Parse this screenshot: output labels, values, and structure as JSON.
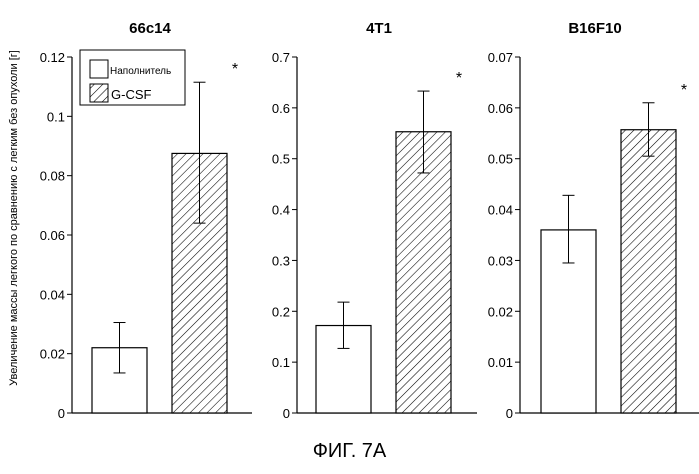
{
  "figure_label": "ФИГ. 7А",
  "legend": {
    "vehicle": "Наполнитель",
    "gcsf": "G-CSF"
  },
  "chart_data": {
    "type": "bar",
    "ylabel": "Увеличение массы легкого по сравнению с легким без опухоли [г]",
    "colors": {
      "vehicle_fill": "#ffffff",
      "gcsf_hatch": "#000000",
      "edge": "#000000"
    },
    "panels": [
      {
        "title": "66c14",
        "ylim": [
          0,
          0.12
        ],
        "ticks": [
          0,
          0.02,
          0.04,
          0.06,
          0.08,
          0.1,
          0.12
        ],
        "tick_labels": [
          "0",
          "0.02",
          "0.04",
          "0.06",
          "0.08",
          "0.1",
          "0.12"
        ],
        "series": [
          {
            "name": "Наполнитель",
            "value": 0.022,
            "err_low": 0.0135,
            "err_high": 0.0305
          },
          {
            "name": "G-CSF",
            "value": 0.0875,
            "err_low": 0.064,
            "err_high": 0.1115,
            "annotation": "*"
          }
        ]
      },
      {
        "title": "4T1",
        "ylim": [
          0,
          0.7
        ],
        "ticks": [
          0,
          0.1,
          0.2,
          0.3,
          0.4,
          0.5,
          0.6,
          0.7
        ],
        "tick_labels": [
          "0",
          "0.1",
          "0.2",
          "0.3",
          "0.4",
          "0.5",
          "0.6",
          "0.7"
        ],
        "series": [
          {
            "name": "Наполнитель",
            "value": 0.172,
            "err_low": 0.127,
            "err_high": 0.218
          },
          {
            "name": "G-CSF",
            "value": 0.553,
            "err_low": 0.472,
            "err_high": 0.633,
            "annotation": "*"
          }
        ]
      },
      {
        "title": "B16F10",
        "ylim": [
          0,
          0.07
        ],
        "ticks": [
          0,
          0.01,
          0.02,
          0.03,
          0.04,
          0.05,
          0.06,
          0.07
        ],
        "tick_labels": [
          "0",
          "0.01",
          "0.02",
          "0.03",
          "0.04",
          "0.05",
          "0.06",
          "0.07"
        ],
        "series": [
          {
            "name": "Наполнитель",
            "value": 0.036,
            "err_low": 0.0295,
            "err_high": 0.0428
          },
          {
            "name": "G-CSF",
            "value": 0.0557,
            "err_low": 0.0505,
            "err_high": 0.061,
            "annotation": "*"
          }
        ]
      }
    ]
  }
}
